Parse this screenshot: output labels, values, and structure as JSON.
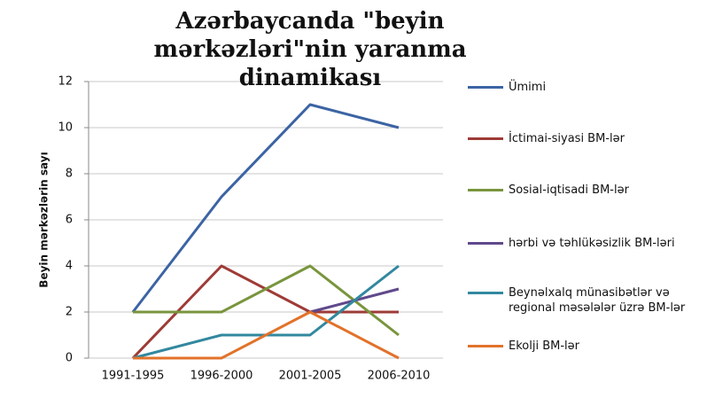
{
  "chart_data": {
    "type": "line",
    "title": "Azərbaycanda \"beyin mərkəzləri\"nin yaranma dinamikası",
    "y_label": "Beyin mərkəzlərin sayı",
    "categories": [
      "1991-1995",
      "1996-2000",
      "2001-2005",
      "2006-2010"
    ],
    "series": [
      {
        "name": "Ümimi",
        "color": "#3c64a4",
        "values": [
          2,
          7,
          11,
          10
        ]
      },
      {
        "name": "İctimai-siyasi  BM-lər",
        "color": "#9e3b37",
        "values": [
          0,
          4,
          2,
          2
        ]
      },
      {
        "name": "Sosial-iqtisadi BM-lər",
        "color": "#79953d",
        "values": [
          2,
          2,
          4,
          1
        ]
      },
      {
        "name": "hərbi və təhlükəsizlik BM-ləri",
        "color": "#60498c",
        "values": [
          null,
          null,
          2,
          3
        ]
      },
      {
        "name": "Beynəlxalq münasibətlər və regional məsələlər üzrə BM-lər",
        "color": "#32889f",
        "values": [
          0,
          1,
          1,
          4
        ]
      },
      {
        "name": "Ekolji BM-lər",
        "color": "#e2722a",
        "values": [
          0,
          0,
          2,
          0
        ]
      }
    ],
    "ylim": [
      0,
      12
    ],
    "yticks": [
      0,
      2,
      4,
      6,
      8,
      10,
      12
    ],
    "grid": true,
    "legend": "right"
  }
}
